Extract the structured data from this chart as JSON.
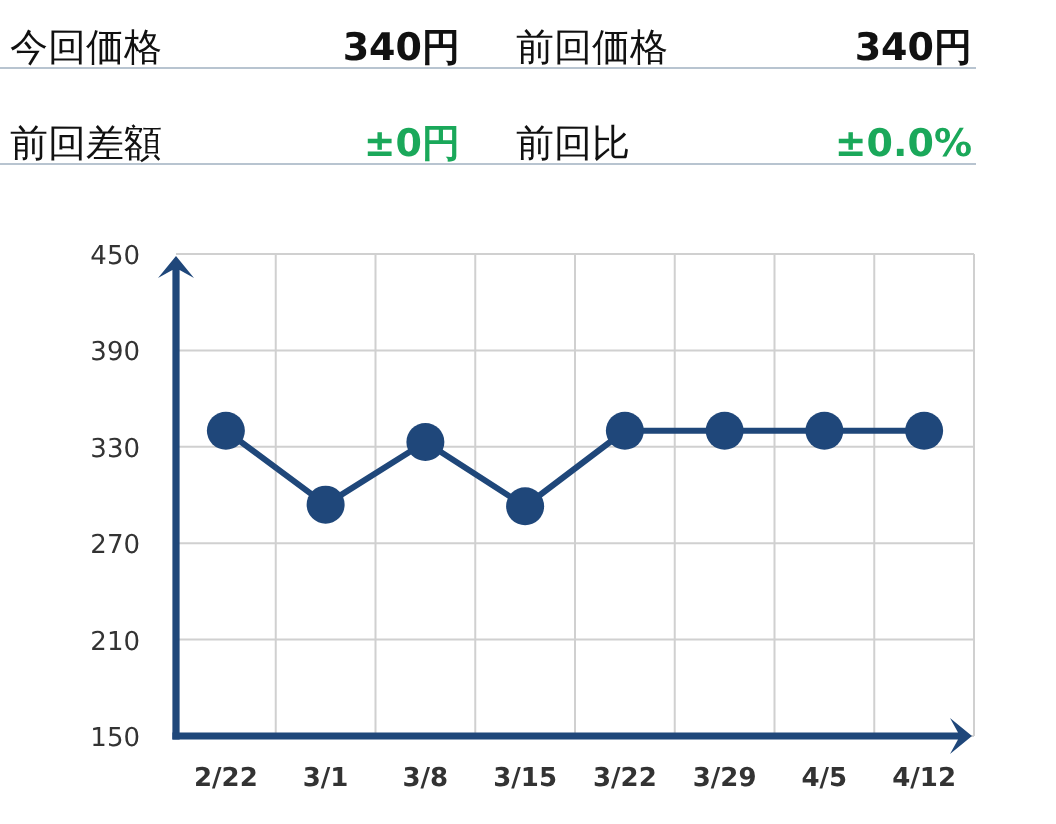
{
  "chart_data": [
    {
      "type": "other",
      "annotations": [
        "今回価格",
        "340円",
        "前回価格",
        "340円",
        "前回差額",
        "±0円",
        "前回比",
        "±0.0%"
      ]
    },
    {
      "type": "line",
      "categories": [
        "2/22",
        "3/1",
        "3/8",
        "3/15",
        "3/22",
        "3/29",
        "4/5",
        "4/12"
      ],
      "series": [
        {
          "color": "#1f477a",
          "values": [
            340,
            294,
            333,
            293,
            340,
            340,
            340,
            340
          ]
        }
      ],
      "ylim": [
        150,
        450
      ],
      "yticks": [
        150,
        210,
        270,
        330,
        390,
        450
      ],
      "grid": true,
      "marker": "circle",
      "line_style": "solid"
    }
  ]
}
